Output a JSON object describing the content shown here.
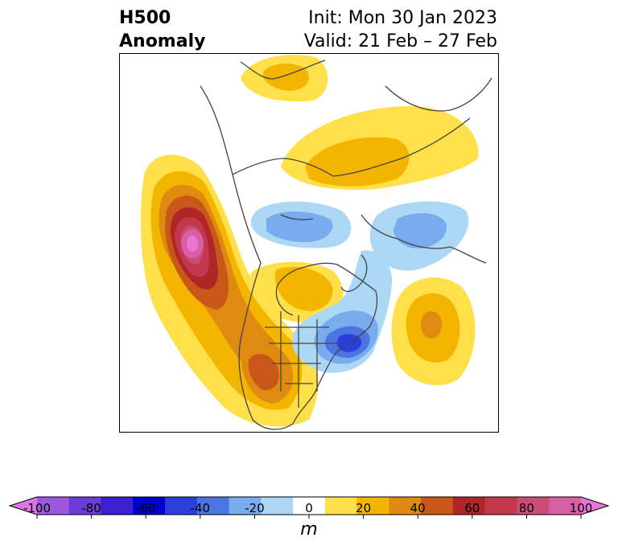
{
  "title": {
    "left_line1": "H500",
    "left_line2": "Anomaly",
    "right_line1": "Init: Mon 30 Jan 2023",
    "right_line2": "Valid: 21 Feb – 27 Feb"
  },
  "colorbar": {
    "unit": "m",
    "ticks": [
      "-100",
      "-80",
      "-60",
      "-40",
      "-20",
      "0",
      "20",
      "40",
      "60",
      "80",
      "100"
    ],
    "colors": [
      "#da76e6",
      "#9e58de",
      "#6c3cd6",
      "#3b1fd0",
      "#0000cc",
      "#2b40d8",
      "#4c74e2",
      "#79abef",
      "#acd8f6",
      "#ffffff",
      "#ffe04a",
      "#f4b500",
      "#df8a10",
      "#c85818",
      "#b02628",
      "#c2384c",
      "#cc4c78",
      "#d85ea6",
      "#e876d6"
    ]
  },
  "map": {
    "colors": {
      "land_outline": "#444444",
      "pos_10": "#ffe04a",
      "pos_20": "#f4b500",
      "pos_30": "#df8a10",
      "pos_40": "#c85818",
      "pos_50": "#b02628",
      "pos_60": "#c2384c",
      "pos_70": "#cc4c78",
      "pos_80": "#d85ea6",
      "neg_10": "#acd8f6",
      "neg_20": "#79abef",
      "neg_30": "#4c74e2",
      "neg_40": "#2b40d8"
    }
  }
}
